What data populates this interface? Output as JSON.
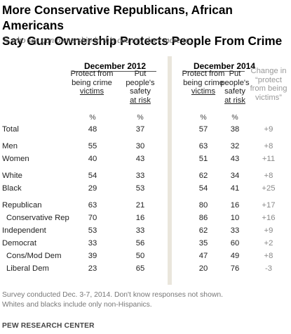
{
  "title_line1": "More Conservative Republicans, African Americans",
  "title_line2": "Say Gun Ownership Protects People From Crime",
  "subtitle": "% who say gun ownership in this country does more to...",
  "periods": [
    "December 2012",
    "December 2014"
  ],
  "columns": {
    "protect_a": "Protect from being crime",
    "protect_b": "victims",
    "risk_a": "Put people's safety",
    "risk_b": "at risk",
    "change": "Change in “protect from being victims”"
  },
  "pct_symbol": "%",
  "rows": [
    {
      "label": "Total",
      "p12": "48",
      "r12": "37",
      "p14": "57",
      "r14": "38",
      "chg": "+9"
    },
    {
      "label": "Men",
      "p12": "55",
      "r12": "30",
      "p14": "63",
      "r14": "32",
      "chg": "+8"
    },
    {
      "label": "Women",
      "p12": "40",
      "r12": "43",
      "p14": "51",
      "r14": "43",
      "chg": "+11"
    },
    {
      "label": "White",
      "p12": "54",
      "r12": "33",
      "p14": "62",
      "r14": "34",
      "chg": "+8"
    },
    {
      "label": "Black",
      "p12": "29",
      "r12": "53",
      "p14": "54",
      "r14": "41",
      "chg": "+25"
    },
    {
      "label": "Republican",
      "p12": "63",
      "r12": "21",
      "p14": "80",
      "r14": "16",
      "chg": "+17"
    },
    {
      "label": "Conservative Rep",
      "p12": "70",
      "r12": "16",
      "p14": "86",
      "r14": "10",
      "chg": "+16"
    },
    {
      "label": "Independent",
      "p12": "53",
      "r12": "33",
      "p14": "62",
      "r14": "33",
      "chg": "+9"
    },
    {
      "label": "Democrat",
      "p12": "33",
      "r12": "56",
      "p14": "35",
      "r14": "60",
      "chg": "+2"
    },
    {
      "label": "Cons/Mod Dem",
      "p12": "39",
      "r12": "50",
      "p14": "47",
      "r14": "49",
      "chg": "+8"
    },
    {
      "label": "Liberal Dem",
      "p12": "23",
      "r12": "65",
      "p14": "20",
      "r14": "76",
      "chg": "-3"
    }
  ],
  "footnote_line1": "Survey conducted Dec. 3-7, 2014. Don't know responses not shown.",
  "footnote_line2": "Whites and blacks include only non-Hispanics.",
  "source": "PEW RESEARCH CENTER"
}
